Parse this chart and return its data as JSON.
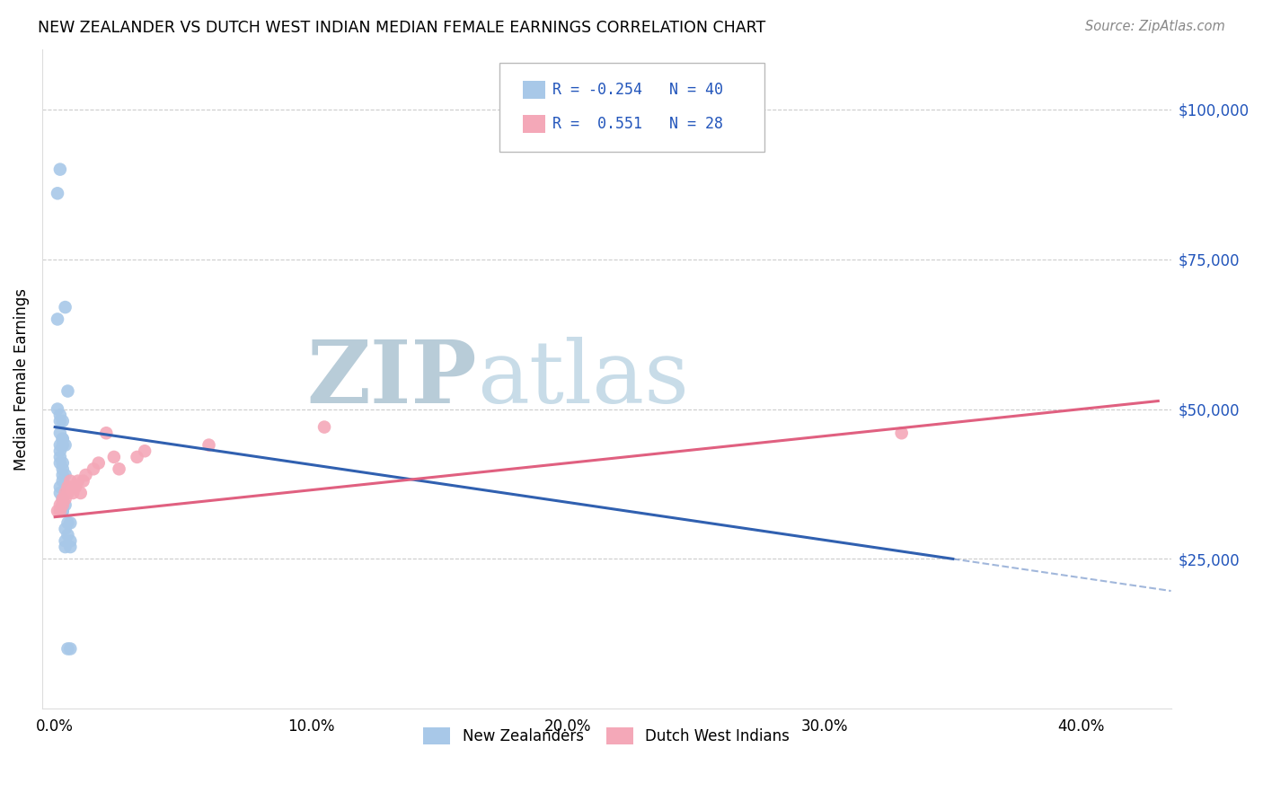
{
  "title": "NEW ZEALANDER VS DUTCH WEST INDIAN MEDIAN FEMALE EARNINGS CORRELATION CHART",
  "source": "Source: ZipAtlas.com",
  "ylabel": "Median Female Earnings",
  "xlabel_ticks": [
    "0.0%",
    "10.0%",
    "20.0%",
    "30.0%",
    "40.0%"
  ],
  "xlabel_vals": [
    0.0,
    0.1,
    0.2,
    0.3,
    0.4
  ],
  "ytick_labels": [
    "$25,000",
    "$50,000",
    "$75,000",
    "$100,000"
  ],
  "ytick_vals": [
    25000,
    50000,
    75000,
    100000
  ],
  "ylim": [
    0,
    110000
  ],
  "xlim": [
    -0.005,
    0.435
  ],
  "legend1_color": "#a8c8e8",
  "legend2_color": "#f4a8b8",
  "line1_color": "#3060b0",
  "line2_color": "#e06080",
  "R1": -0.254,
  "N1": 40,
  "R2": 0.551,
  "N2": 28,
  "nz_x": [
    0.001,
    0.004,
    0.002,
    0.001,
    0.001,
    0.002,
    0.002,
    0.003,
    0.002,
    0.003,
    0.003,
    0.003,
    0.002,
    0.004,
    0.005,
    0.002,
    0.002,
    0.003,
    0.002,
    0.003,
    0.003,
    0.004,
    0.003,
    0.002,
    0.002,
    0.003,
    0.003,
    0.004,
    0.003,
    0.003,
    0.005,
    0.006,
    0.004,
    0.004,
    0.004,
    0.005,
    0.006,
    0.006,
    0.005,
    0.006
  ],
  "nz_y": [
    65000,
    67000,
    90000,
    86000,
    50000,
    49000,
    48000,
    48000,
    46000,
    45000,
    45000,
    44000,
    44000,
    44000,
    53000,
    43000,
    42000,
    41000,
    41000,
    40000,
    39000,
    39000,
    38000,
    37000,
    36000,
    35000,
    34000,
    34000,
    33000,
    33000,
    31000,
    31000,
    28000,
    27000,
    30000,
    29000,
    27000,
    28000,
    10000,
    10000
  ],
  "dwi_x": [
    0.001,
    0.002,
    0.002,
    0.003,
    0.003,
    0.004,
    0.004,
    0.005,
    0.005,
    0.005,
    0.006,
    0.006,
    0.007,
    0.008,
    0.009,
    0.01,
    0.011,
    0.012,
    0.015,
    0.017,
    0.02,
    0.023,
    0.025,
    0.032,
    0.035,
    0.06,
    0.33,
    0.105
  ],
  "dwi_y": [
    33000,
    34000,
    33000,
    34000,
    35000,
    36000,
    35000,
    36000,
    37000,
    36000,
    37000,
    38000,
    36000,
    37000,
    38000,
    36000,
    38000,
    39000,
    40000,
    41000,
    46000,
    42000,
    40000,
    42000,
    43000,
    44000,
    46000,
    47000
  ],
  "bg_color": "#ffffff",
  "grid_color": "#cccccc",
  "watermark_zip": "ZIP",
  "watermark_atlas": "atlas",
  "watermark_color": "#c8d8e8",
  "nz_line_solid_end": 0.35,
  "nz_line_dash_end": 0.435
}
